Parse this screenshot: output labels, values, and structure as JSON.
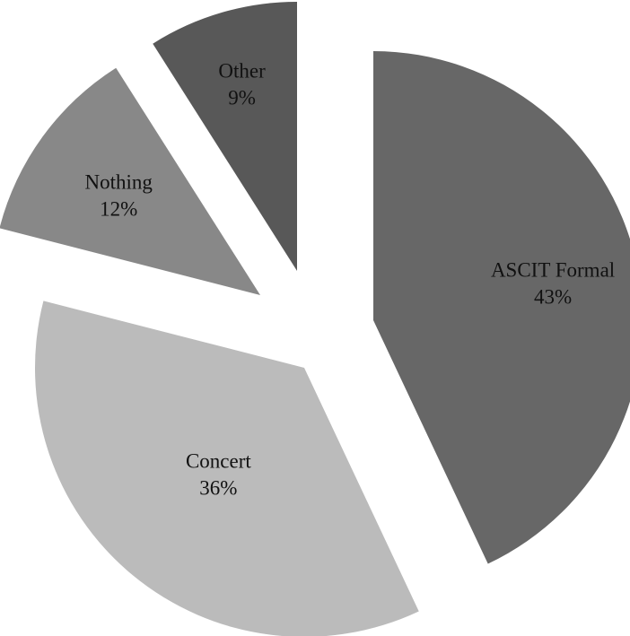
{
  "chart_data": {
    "type": "pie",
    "title": "",
    "labels": [
      "ASCIT Formal",
      "Concert",
      "Nothing",
      "Other"
    ],
    "values": [
      43,
      36,
      12,
      9
    ],
    "value_labels": [
      "43%",
      "36%",
      "12%",
      "9%"
    ],
    "colors": [
      "#676767",
      "#bbbbbb",
      "#888888",
      "#585858"
    ],
    "exploded": true,
    "legend": "none",
    "start_angle_deg": 0,
    "direction": "clockwise"
  }
}
